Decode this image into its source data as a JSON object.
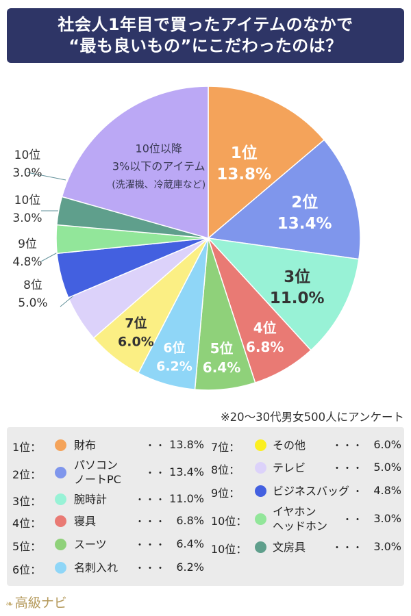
{
  "title": {
    "line1": "社会人1年目で買ったアイテムのなかで",
    "line2": "“最も良いもの”にこだわったのは？"
  },
  "chart_data": {
    "type": "pie",
    "slices": [
      {
        "rank": "1位",
        "label": "1位",
        "value": 13.8,
        "pct": "13.8%",
        "color": "#f4a35a"
      },
      {
        "rank": "2位",
        "label": "2位",
        "value": 13.4,
        "pct": "13.4%",
        "color": "#7f96ec"
      },
      {
        "rank": "3位",
        "label": "3位",
        "value": 11.0,
        "pct": "11.0%",
        "color": "#98f2d6"
      },
      {
        "rank": "4位",
        "label": "4位",
        "value": 6.8,
        "pct": "6.8%",
        "color": "#e97a74"
      },
      {
        "rank": "5位",
        "label": "5位",
        "value": 6.4,
        "pct": "6.4%",
        "color": "#8fd17a"
      },
      {
        "rank": "6位",
        "label": "6位",
        "value": 6.2,
        "pct": "6.2%",
        "color": "#8fd6f7"
      },
      {
        "rank": "7位",
        "label": "7位",
        "value": 6.0,
        "pct": "6.0%",
        "color": "#fbef84"
      },
      {
        "rank": "8位",
        "label": "8位",
        "value": 5.0,
        "pct": "5.0%",
        "color": "#dcd2fa"
      },
      {
        "rank": "9位",
        "label": "9位",
        "value": 4.8,
        "pct": "4.8%",
        "color": "#4360e0"
      },
      {
        "rank": "10位",
        "label": "10位",
        "value": 3.0,
        "pct": "3.0%",
        "color": "#92e69a"
      },
      {
        "rank": "10位",
        "label": "10位",
        "value": 3.0,
        "pct": "3.0%",
        "color": "#5f9f8c"
      },
      {
        "rank": "",
        "label": "10位以降",
        "value": 20.6,
        "pct": "",
        "color": "#bba8f5",
        "note_lines": [
          "10位以降",
          "3%以下のアイテム",
          "(洗濯機、冷蔵庫など)"
        ]
      }
    ]
  },
  "survey_note": "※20～30代男女500人にアンケート",
  "legend": {
    "left": [
      {
        "rank": "1位：",
        "lines": [
          "財布"
        ],
        "dots": "・・",
        "pct": "13.8%",
        "color": "#f4a35a"
      },
      {
        "rank": "2位：",
        "lines": [
          "パソコン",
          "ノートPC"
        ],
        "dots": "・・",
        "pct": "13.4%",
        "color": "#7f96ec"
      },
      {
        "rank": "3位：",
        "lines": [
          "腕時計"
        ],
        "dots": "・・・",
        "pct": "11.0%",
        "color": "#98f2d6"
      },
      {
        "rank": "4位：",
        "lines": [
          "寝具"
        ],
        "dots": "・・・",
        "pct": "6.8%",
        "color": "#e97a74"
      },
      {
        "rank": "5位：",
        "lines": [
          "スーツ"
        ],
        "dots": "・・・",
        "pct": "6.4%",
        "color": "#8fd17a"
      },
      {
        "rank": "6位：",
        "lines": [
          "名刺入れ"
        ],
        "dots": "・・・",
        "pct": "6.2%",
        "color": "#8fd6f7"
      }
    ],
    "right": [
      {
        "rank": "7位：",
        "lines": [
          "その他"
        ],
        "dots": "・・・",
        "pct": "6.0%",
        "color": "#fbef20"
      },
      {
        "rank": "8位：",
        "lines": [
          "テレビ"
        ],
        "dots": "・・・",
        "pct": "5.0%",
        "color": "#dcd2fa"
      },
      {
        "rank": "9位：",
        "lines": [
          "ビジネスバッグ"
        ],
        "dots": "・",
        "pct": "4.8%",
        "color": "#4360e0"
      },
      {
        "rank": "10位：",
        "lines": [
          "イヤホン",
          "ヘッドホン"
        ],
        "dots": "・・",
        "pct": "3.0%",
        "color": "#92e69a"
      },
      {
        "rank": "10位：",
        "lines": [
          "文房具"
        ],
        "dots": "・・・",
        "pct": "3.0%",
        "color": "#5f9f8c"
      }
    ]
  },
  "brand": {
    "name": "高級ナビ",
    "icon": "ribbon-icon"
  }
}
